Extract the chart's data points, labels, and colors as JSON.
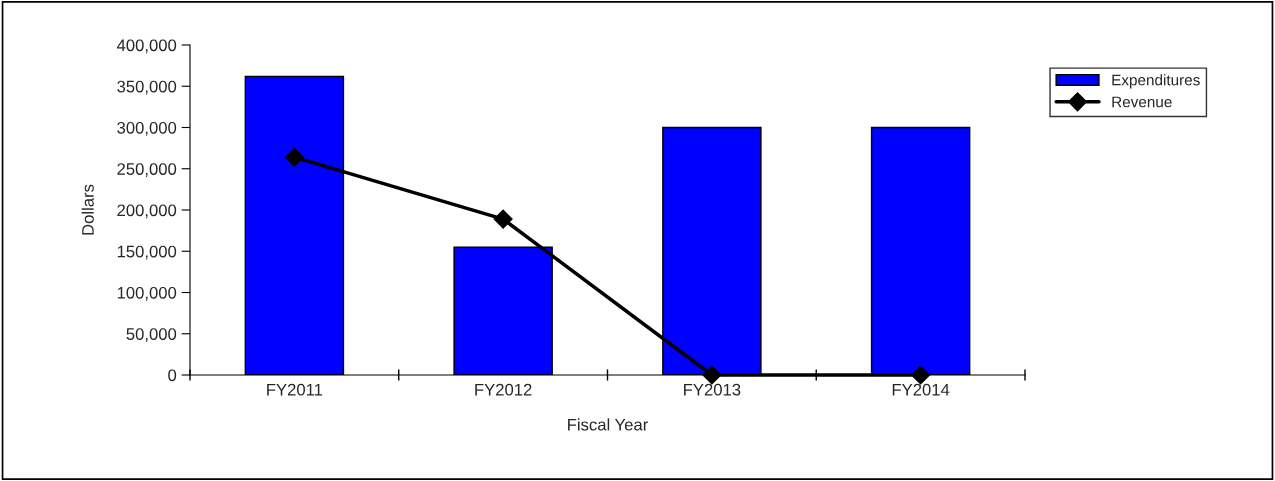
{
  "chart_data": {
    "type": "bar",
    "xlabel": "Fiscal Year",
    "ylabel": "Dollars",
    "categories": [
      "FY2011",
      "FY2012",
      "FY2013",
      "FY2014"
    ],
    "series": [
      {
        "name": "Expenditures",
        "color": "#0000ff",
        "values": [
          362000,
          155000,
          300000,
          300000
        ]
      },
      {
        "name": "Revenue",
        "type": "line",
        "color": "#000000",
        "marker": "diamond",
        "values": [
          264000,
          189000,
          0,
          0
        ]
      }
    ],
    "ylim": [
      0,
      400000
    ],
    "yticks": [
      {
        "value": 0,
        "label": "0"
      },
      {
        "value": 50000,
        "label": "50,000"
      },
      {
        "value": 100000,
        "label": "100,000"
      },
      {
        "value": 150000,
        "label": "150,000"
      },
      {
        "value": 200000,
        "label": "200,000"
      },
      {
        "value": 250000,
        "label": "250,000"
      },
      {
        "value": 300000,
        "label": "300,000"
      },
      {
        "value": 350000,
        "label": "350,000"
      },
      {
        "value": 400000,
        "label": "400,000"
      }
    ],
    "grid": false,
    "legend": "top right"
  }
}
